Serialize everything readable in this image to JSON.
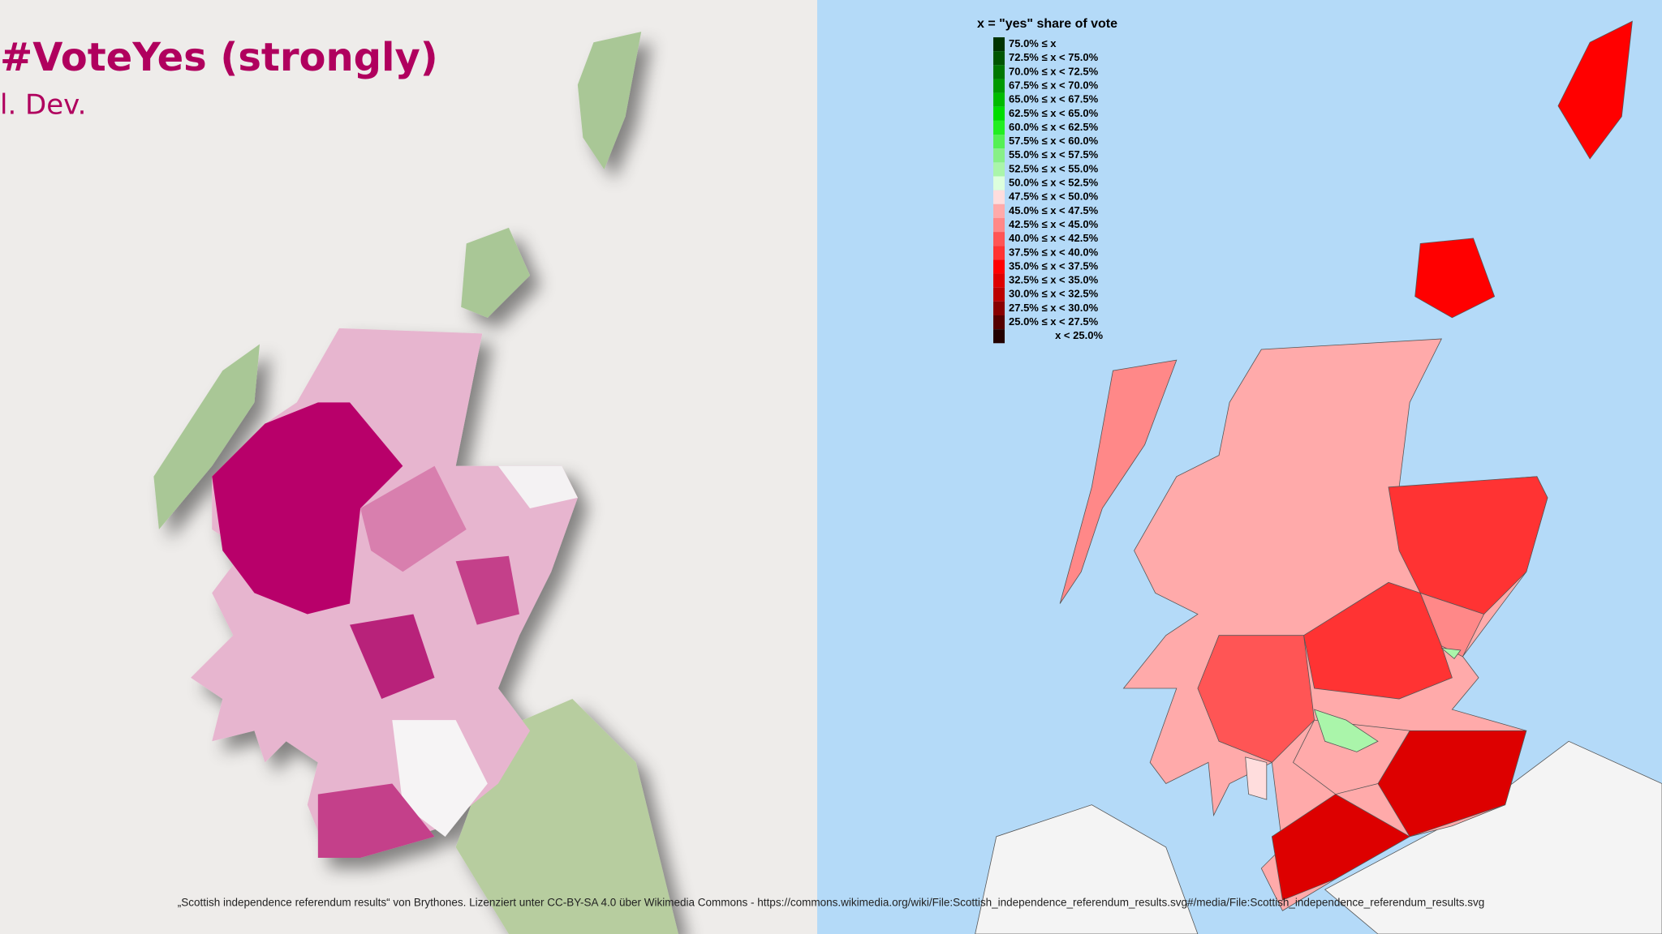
{
  "left_panel": {
    "title": "#VoteYes (strongly)",
    "subtitle": "l. Dev."
  },
  "right_panel": {
    "legend": {
      "title": "x = \"yes\" share of vote",
      "items": [
        {
          "label": "75.0% ≤ x",
          "color": "#003300"
        },
        {
          "label": "72.5% ≤ x < 75.0%",
          "color": "#005500"
        },
        {
          "label": "70.0% ≤ x < 72.5%",
          "color": "#007700"
        },
        {
          "label": "67.5% ≤ x < 70.0%",
          "color": "#009900"
        },
        {
          "label": "65.0% ≤ x < 67.5%",
          "color": "#00bb00"
        },
        {
          "label": "62.5% ≤ x < 65.0%",
          "color": "#00dd00"
        },
        {
          "label": "60.0% ≤ x < 62.5%",
          "color": "#22ee22"
        },
        {
          "label": "57.5% ≤ x < 60.0%",
          "color": "#55f055"
        },
        {
          "label": "55.0% ≤ x < 57.5%",
          "color": "#88f088"
        },
        {
          "label": "52.5% ≤ x < 55.0%",
          "color": "#aaf5aa"
        },
        {
          "label": "50.0% ≤ x < 52.5%",
          "color": "#ddffdd"
        },
        {
          "label": "47.5% ≤ x < 50.0%",
          "color": "#ffdddd"
        },
        {
          "label": "45.0% ≤ x < 47.5%",
          "color": "#ffaaaa"
        },
        {
          "label": "42.5% ≤ x < 45.0%",
          "color": "#ff8888"
        },
        {
          "label": "40.0% ≤ x < 42.5%",
          "color": "#ff5555"
        },
        {
          "label": "37.5% ≤ x < 40.0%",
          "color": "#ff3333"
        },
        {
          "label": "35.0% ≤ x < 37.5%",
          "color": "#ff0000"
        },
        {
          "label": "32.5% ≤ x < 35.0%",
          "color": "#dd0000"
        },
        {
          "label": "30.0% ≤ x < 32.5%",
          "color": "#bb0000"
        },
        {
          "label": "27.5% ≤ x < 30.0%",
          "color": "#880000"
        },
        {
          "label": "25.0% ≤ x < 27.5%",
          "color": "#550000"
        },
        {
          "label": "x < 25.0%",
          "color": "#220000"
        }
      ]
    }
  },
  "caption": "„Scottish independence referendum results“ von Brythones. Lizenziert unter CC-BY-SA 4.0 über Wikimedia Commons - https://commons.wikimedia.org/wiki/File:Scottish_independence_referendum_results.svg#/media/File:Scottish_independence_referendum_results.svg"
}
